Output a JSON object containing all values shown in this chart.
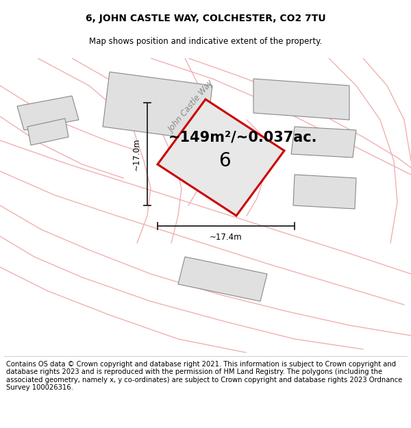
{
  "title_line1": "6, JOHN CASTLE WAY, COLCHESTER, CO2 7TU",
  "title_line2": "Map shows position and indicative extent of the property.",
  "area_text": "~149m²/~0.037ac.",
  "label_number": "6",
  "dim_vertical": "~17.0m",
  "dim_horizontal": "~17.4m",
  "street_label": "John Castle Way",
  "footer_text": "Contains OS data © Crown copyright and database right 2021. This information is subject to Crown copyright and database rights 2023 and is reproduced with the permission of HM Land Registry. The polygons (including the associated geometry, namely x, y co-ordinates) are subject to Crown copyright and database rights 2023 Ordnance Survey 100026316.",
  "bg_color": "#ffffff",
  "map_bg": "#ffffff",
  "plot_fill": "#e8e8e8",
  "plot_edge": "#cc0000",
  "neighbor_fill": "#e0e0e0",
  "neighbor_edge": "#888888",
  "road_color": "#f0b0b0",
  "road_lw": 1.0,
  "dim_color": "#222222",
  "title_fontsize": 10,
  "subtitle_fontsize": 8.5,
  "area_fontsize": 15,
  "label_fontsize": 20,
  "street_fontsize": 8.5,
  "footer_fontsize": 7.2,
  "map_border_color": "#cccccc"
}
